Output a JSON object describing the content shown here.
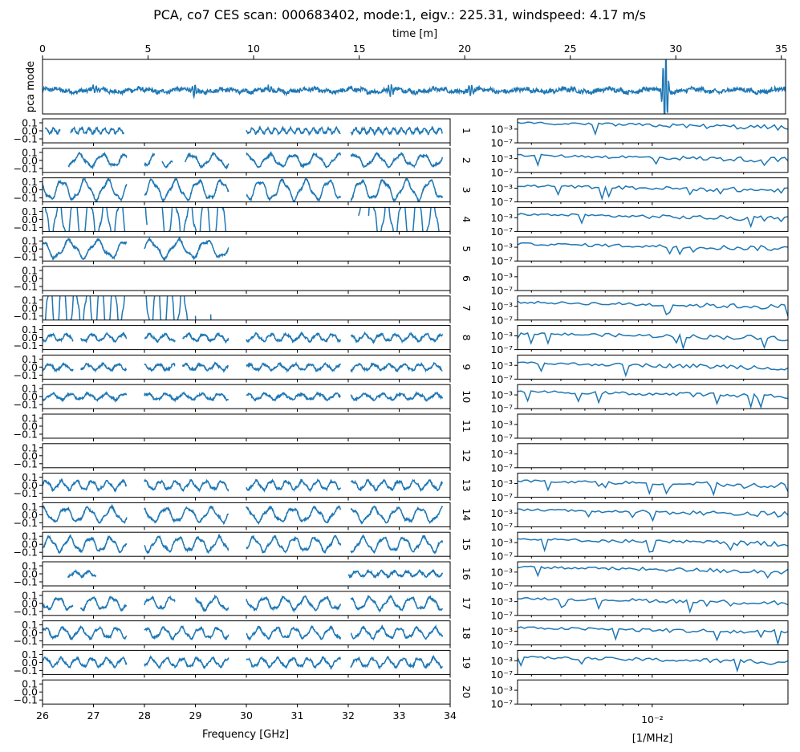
{
  "chart_data": {
    "type": "line",
    "title": "PCA, co7 CES scan: 000683402, mode:1, eigv.: 225.31, windspeed: 4.17 m/s",
    "series_color": "#1f77b4",
    "top_panel": {
      "xlabel": "time [m]",
      "ylabel": "pca mode",
      "xlim": [
        0,
        35.2
      ],
      "xticks": [
        "0",
        "5",
        "10",
        "15",
        "20",
        "25",
        "30",
        "35"
      ],
      "xtick_values": [
        0,
        5,
        10,
        15,
        20,
        25,
        30,
        35
      ],
      "features": [
        {
          "t": 2.5,
          "amp": 0.15
        },
        {
          "t": 7.2,
          "amp": 0.25
        },
        {
          "t": 10.8,
          "amp": 0.12
        },
        {
          "t": 16.5,
          "amp": 0.22
        },
        {
          "t": 20.3,
          "amp": 0.2
        },
        {
          "t": 29.5,
          "amp": 0.9
        }
      ]
    },
    "left_panels": {
      "xlabel": "Frequency [GHz]",
      "xlim": [
        26,
        34
      ],
      "xticks": [
        "26",
        "27",
        "28",
        "29",
        "30",
        "31",
        "32",
        "33",
        "34"
      ],
      "xtick_values": [
        26,
        27,
        28,
        29,
        30,
        31,
        32,
        33,
        34
      ],
      "ylim": [
        -0.15,
        0.15
      ],
      "yticks": [
        "0.1",
        "0.0",
        "−0.1"
      ],
      "ytick_values": [
        0.1,
        0.0,
        -0.1
      ]
    },
    "right_panels": {
      "xlabel": "[1/MHz]",
      "xscale": "log",
      "xlim": [
        0.0036,
        0.028
      ],
      "xticks": [
        "10⁻²"
      ],
      "xtick_values": [
        0.01
      ],
      "yscale": "log",
      "ylim_exp": [
        -7,
        0
      ],
      "yticks": [
        "10⁻³",
        "10⁻⁷"
      ],
      "ytick_exps": [
        -3,
        -7
      ]
    },
    "feeds": [
      {
        "label": "1",
        "segments": [
          [
            26.05,
            26.35
          ],
          [
            26.55,
            27.6
          ],
          [
            30.0,
            31.85
          ],
          [
            32.05,
            33.85
          ]
        ],
        "amp": 0.03,
        "period": 0.15,
        "psd_level": -1.2
      },
      {
        "label": "2",
        "segments": [
          [
            26.5,
            27.65
          ],
          [
            28.0,
            28.2
          ],
          [
            28.35,
            28.55
          ],
          [
            28.8,
            29.65
          ],
          [
            30.0,
            31.85
          ],
          [
            32.05,
            33.85
          ]
        ],
        "amp": 0.07,
        "period": 0.45,
        "psd_level": -2.0
      },
      {
        "label": "3",
        "segments": [
          [
            26.0,
            27.65
          ],
          [
            28.0,
            29.65
          ],
          [
            30.0,
            31.85
          ],
          [
            32.05,
            33.85
          ]
        ],
        "amp": 0.11,
        "period": 0.45,
        "psd_level": -2.3
      },
      {
        "label": "4",
        "segments": [
          [
            26.0,
            27.65
          ],
          [
            28.0,
            28.05
          ],
          [
            28.25,
            29.65
          ],
          [
            32.2,
            32.25
          ],
          [
            32.4,
            33.85
          ]
        ],
        "amp": 0.25,
        "period": 0.3,
        "psd_level": -2.0
      },
      {
        "label": "5",
        "segments": [
          [
            26.0,
            27.65
          ],
          [
            28.0,
            29.65
          ]
        ],
        "amp": 0.1,
        "period": 0.55,
        "psd_level": -2.0
      },
      {
        "label": "6",
        "segments": [],
        "amp": 0,
        "period": 0.5,
        "psd_level": null
      },
      {
        "label": "7",
        "segments": [
          [
            26.0,
            27.65
          ],
          [
            28.0,
            28.9
          ],
          [
            29.0,
            29.05
          ],
          [
            29.3,
            29.35
          ],
          [
            29.6,
            29.65
          ]
        ],
        "amp": 0.3,
        "period": 0.25,
        "psd_level": -1.8
      },
      {
        "label": "8",
        "segments": [
          [
            26.0,
            26.6
          ],
          [
            26.75,
            27.65
          ],
          [
            28.0,
            28.6
          ],
          [
            28.75,
            29.65
          ],
          [
            30.0,
            31.85
          ],
          [
            32.05,
            33.85
          ]
        ],
        "amp": 0.04,
        "period": 0.3,
        "psd_level": -2.3
      },
      {
        "label": "9",
        "segments": [
          [
            26.0,
            26.6
          ],
          [
            26.75,
            27.65
          ],
          [
            28.0,
            28.6
          ],
          [
            28.75,
            29.65
          ],
          [
            30.0,
            31.85
          ],
          [
            32.05,
            33.85
          ]
        ],
        "amp": 0.035,
        "period": 0.3,
        "psd_level": -2.3
      },
      {
        "label": "10",
        "segments": [
          [
            26.0,
            27.65
          ],
          [
            28.0,
            29.65
          ],
          [
            30.0,
            31.85
          ],
          [
            32.05,
            33.85
          ]
        ],
        "amp": 0.035,
        "period": 0.35,
        "psd_level": -2.0
      },
      {
        "label": "11",
        "segments": [],
        "amp": 0,
        "period": 0.5,
        "psd_level": null
      },
      {
        "label": "12",
        "segments": [],
        "amp": 0,
        "period": 0.5,
        "psd_level": null
      },
      {
        "label": "13",
        "segments": [
          [
            26.0,
            27.65
          ],
          [
            28.0,
            29.65
          ],
          [
            30.0,
            31.85
          ],
          [
            32.05,
            33.85
          ]
        ],
        "amp": 0.05,
        "period": 0.3,
        "psd_level": -2.2
      },
      {
        "label": "14",
        "segments": [
          [
            26.0,
            27.65
          ],
          [
            28.0,
            29.65
          ],
          [
            30.0,
            31.85
          ],
          [
            32.05,
            33.85
          ]
        ],
        "amp": 0.08,
        "period": 0.45,
        "psd_level": -2.0
      },
      {
        "label": "15",
        "segments": [
          [
            26.0,
            27.65
          ],
          [
            28.0,
            29.65
          ],
          [
            30.0,
            31.85
          ],
          [
            32.05,
            33.85
          ]
        ],
        "amp": 0.08,
        "period": 0.4,
        "psd_level": -2.0
      },
      {
        "label": "16",
        "segments": [
          [
            26.5,
            27.05
          ],
          [
            32.0,
            33.85
          ]
        ],
        "amp": 0.03,
        "period": 0.25,
        "psd_level": -1.5
      },
      {
        "label": "17",
        "segments": [
          [
            26.0,
            26.6
          ],
          [
            26.75,
            27.65
          ],
          [
            28.0,
            28.6
          ],
          [
            29.0,
            29.65
          ],
          [
            30.0,
            31.85
          ],
          [
            32.05,
            33.85
          ]
        ],
        "amp": 0.07,
        "period": 0.4,
        "psd_level": -2.0
      },
      {
        "label": "18",
        "segments": [
          [
            26.0,
            27.65
          ],
          [
            28.0,
            29.65
          ],
          [
            30.0,
            31.85
          ],
          [
            32.05,
            33.85
          ]
        ],
        "amp": 0.06,
        "period": 0.35,
        "psd_level": -2.0
      },
      {
        "label": "19",
        "segments": [
          [
            26.0,
            27.65
          ],
          [
            28.0,
            29.65
          ],
          [
            30.0,
            31.85
          ],
          [
            32.05,
            33.85
          ]
        ],
        "amp": 0.05,
        "period": 0.3,
        "psd_level": -2.0
      },
      {
        "label": "20",
        "segments": [],
        "amp": 0,
        "period": 0.5,
        "psd_level": null
      }
    ]
  }
}
